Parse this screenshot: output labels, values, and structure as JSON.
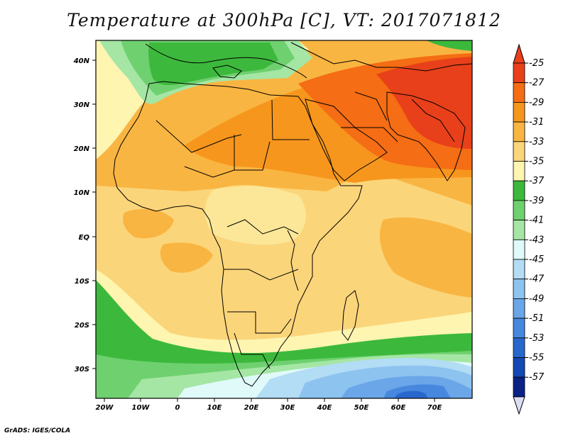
{
  "title": "Temperature at 300hPa [C], VT: 2017071812",
  "credit": "GrADS: IGES/COLA",
  "map": {
    "lon_ticks": [
      "20W",
      "10W",
      "0",
      "10E",
      "20E",
      "30E",
      "40E",
      "50E",
      "60E",
      "70E"
    ],
    "lat_ticks": [
      "40N",
      "30N",
      "20N",
      "10N",
      "EQ",
      "10S",
      "20S",
      "30S"
    ]
  },
  "colorbar": {
    "labels": [
      "-25",
      "-27",
      "-29",
      "-31",
      "-33",
      "-35",
      "-37",
      "-39",
      "-41",
      "-43",
      "-45",
      "-47",
      "-49",
      "-51",
      "-53",
      "-55",
      "-57"
    ],
    "colors": [
      "#e8401a",
      "#f56d14",
      "#f7961d",
      "#f9b542",
      "#fbd57a",
      "#fdf5b0",
      "#3cb93c",
      "#6fd06f",
      "#a5e6a5",
      "#e0fafa",
      "#b3dcf5",
      "#8dc3ef",
      "#6aa6e8",
      "#4788de",
      "#2868cc",
      "#1448b4",
      "#0a2286"
    ],
    "top_arrow_color": "#e8401a",
    "bottom_arrow_color": "#dcdcf5"
  }
}
